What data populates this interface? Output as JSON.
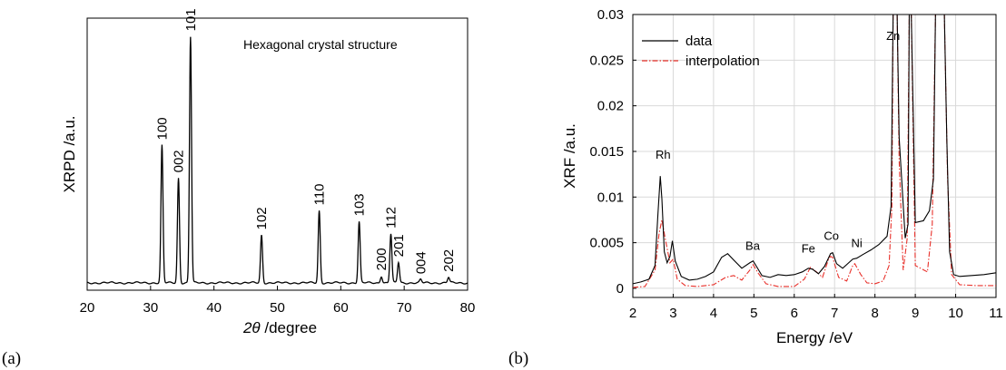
{
  "panel_labels": [
    "(a)",
    "(b)"
  ],
  "chart_data": [
    {
      "type": "line",
      "title": "",
      "annotation": "Hexagonal crystal structure",
      "xlabel_symbol": "2θ",
      "xlabel_rest": " /degree",
      "ylabel": "XRPD /a.u.",
      "xlim": [
        20,
        80
      ],
      "ylim": [
        0,
        1
      ],
      "y_ticks_shown": false,
      "x_ticks": [
        20,
        30,
        40,
        50,
        60,
        70,
        80
      ],
      "x_tick_labels": [
        "20",
        "30",
        "40",
        "50",
        "60",
        "70",
        "80"
      ],
      "grid": false,
      "baseline": 0.027,
      "peaks": [
        {
          "x": 31.8,
          "height": 0.505,
          "label": "100"
        },
        {
          "x": 34.4,
          "height": 0.385,
          "label": "002"
        },
        {
          "x": 36.3,
          "height": 0.905,
          "label": "101"
        },
        {
          "x": 47.5,
          "height": 0.175,
          "label": "102"
        },
        {
          "x": 56.6,
          "height": 0.265,
          "label": "110"
        },
        {
          "x": 62.9,
          "height": 0.225,
          "label": "103"
        },
        {
          "x": 66.4,
          "height": 0.025,
          "label": "200"
        },
        {
          "x": 67.9,
          "height": 0.18,
          "label": "112"
        },
        {
          "x": 69.1,
          "height": 0.075,
          "label": "201"
        },
        {
          "x": 72.6,
          "height": 0.012,
          "label": "004"
        },
        {
          "x": 77.0,
          "height": 0.02,
          "label": "202"
        }
      ],
      "series": [
        {
          "color": "#000000"
        }
      ]
    },
    {
      "type": "line",
      "title": "",
      "xlabel": "Energy /eV",
      "ylabel": "XRF /a.u.",
      "xlim": [
        2,
        11
      ],
      "ylim": [
        -0.001,
        0.03
      ],
      "x_ticks": [
        2,
        3,
        4,
        5,
        6,
        7,
        8,
        9,
        10,
        11
      ],
      "x_tick_labels": [
        "2",
        "3",
        "4",
        "5",
        "6",
        "7",
        "8",
        "9",
        "10",
        "11"
      ],
      "y_ticks": [
        0,
        0.005,
        0.01,
        0.015,
        0.02,
        0.025,
        0.03
      ],
      "y_tick_labels": [
        "0",
        "0.005",
        "0.01",
        "0.015",
        "0.02",
        "0.025",
        "0.03"
      ],
      "grid": true,
      "legend_position": "top-left",
      "series": [
        {
          "name": "data",
          "color": "#000000",
          "style": "solid",
          "x": [
            2.0,
            2.2,
            2.4,
            2.55,
            2.62,
            2.68,
            2.72,
            2.78,
            2.85,
            2.92,
            2.98,
            3.05,
            3.2,
            3.4,
            3.6,
            3.8,
            4.0,
            4.2,
            4.35,
            4.5,
            4.7,
            4.9,
            4.98,
            5.05,
            5.2,
            5.4,
            5.6,
            5.8,
            6.0,
            6.2,
            6.35,
            6.45,
            6.6,
            6.75,
            6.9,
            6.95,
            7.05,
            7.2,
            7.35,
            7.45,
            7.55,
            7.7,
            7.9,
            8.1,
            8.3,
            8.4,
            8.45,
            8.55,
            8.6,
            8.75,
            8.82,
            8.85,
            8.9,
            9.0,
            9.2,
            9.35,
            9.45,
            9.5,
            9.72,
            9.78,
            9.85,
            9.95,
            10.1,
            10.4,
            10.7,
            11.0
          ],
          "y": [
            0.0005,
            0.0007,
            0.001,
            0.0025,
            0.008,
            0.0123,
            0.0098,
            0.004,
            0.0028,
            0.0035,
            0.0052,
            0.003,
            0.0013,
            0.0009,
            0.001,
            0.0013,
            0.0018,
            0.0034,
            0.0038,
            0.0031,
            0.0022,
            0.0028,
            0.003,
            0.0025,
            0.0014,
            0.0012,
            0.0015,
            0.0014,
            0.0015,
            0.0018,
            0.0022,
            0.0021,
            0.0016,
            0.0024,
            0.0038,
            0.0039,
            0.0027,
            0.0022,
            0.0028,
            0.0032,
            0.0033,
            0.0037,
            0.0042,
            0.0048,
            0.0057,
            0.009,
            0.03,
            0.03,
            0.0165,
            0.0055,
            0.007,
            0.03,
            0.03,
            0.0072,
            0.0074,
            0.0085,
            0.012,
            0.03,
            0.03,
            0.0165,
            0.004,
            0.0015,
            0.0013,
            0.0014,
            0.0015,
            0.0017
          ]
        },
        {
          "name": "interpolation",
          "color": "#e8302a",
          "style": "dashdot",
          "x": [
            2.0,
            2.3,
            2.55,
            2.65,
            2.72,
            2.8,
            2.92,
            3.0,
            3.1,
            3.3,
            3.6,
            4.0,
            4.3,
            4.5,
            4.7,
            4.9,
            4.98,
            5.1,
            5.3,
            5.6,
            6.0,
            6.25,
            6.4,
            6.55,
            6.7,
            6.85,
            6.9,
            6.95,
            7.1,
            7.3,
            7.45,
            7.5,
            7.65,
            7.8,
            8.0,
            8.2,
            8.35,
            8.42,
            8.45,
            8.55,
            8.6,
            8.7,
            8.8,
            8.85,
            8.9,
            9.0,
            9.3,
            9.42,
            9.5,
            9.72,
            9.8,
            9.9,
            10.1,
            10.5,
            11.0
          ],
          "y": [
            0.0001,
            0.0002,
            0.002,
            0.006,
            0.0075,
            0.0055,
            0.0028,
            0.0032,
            0.001,
            0.0003,
            0.0002,
            0.0004,
            0.0012,
            0.0014,
            0.0009,
            0.002,
            0.0026,
            0.0017,
            0.0005,
            0.0002,
            0.0002,
            0.001,
            0.0023,
            0.0018,
            0.0012,
            0.0032,
            0.0035,
            0.0034,
            0.0012,
            0.0008,
            0.0025,
            0.0027,
            0.0015,
            0.0006,
            0.0005,
            0.0008,
            0.0025,
            0.009,
            0.03,
            0.03,
            0.014,
            0.002,
            0.0055,
            0.03,
            0.03,
            0.0025,
            0.0018,
            0.007,
            0.03,
            0.03,
            0.012,
            0.0015,
            0.0004,
            0.0003,
            0.0003
          ]
        }
      ],
      "annotations": [
        {
          "text": "Rh",
          "x": 2.75,
          "y": 0.0142
        },
        {
          "text": "Ba",
          "x": 4.97,
          "y": 0.0042
        },
        {
          "text": "Fe",
          "x": 6.35,
          "y": 0.0039
        },
        {
          "text": "Co",
          "x": 6.92,
          "y": 0.0053
        },
        {
          "text": "Ni",
          "x": 7.55,
          "y": 0.0045
        },
        {
          "text": "Zn",
          "x": 8.45,
          "y": 0.0272
        }
      ]
    }
  ]
}
